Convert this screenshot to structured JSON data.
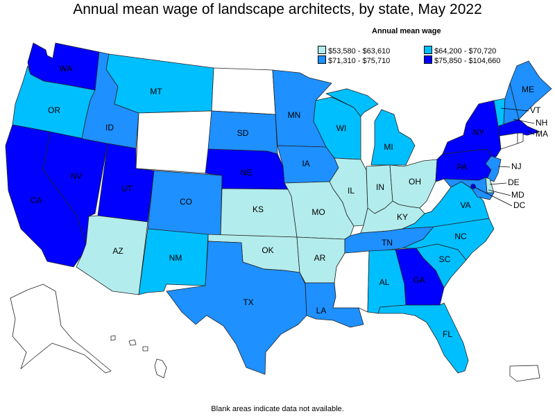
{
  "title": "Annual mean wage of landscape architects, by state, May 2022",
  "legend": {
    "title": "Annual mean wage",
    "items": [
      {
        "label": "$53,580 - $63,610",
        "color": "#b3ecec"
      },
      {
        "label": "$64,200 - $70,720",
        "color": "#00bfff"
      },
      {
        "label": "$71,310 - $75,710",
        "color": "#1e90ff"
      },
      {
        "label": "$75,850 - $104,660",
        "color": "#0000ff"
      }
    ]
  },
  "footnote": "Blank areas indicate data not available.",
  "colors": {
    "no_data": "#ffffff",
    "border": "#222222"
  },
  "states": {
    "WA": 4,
    "OR": 2,
    "CA": 4,
    "NV": 4,
    "ID": 3,
    "MT": 2,
    "WY": 0,
    "UT": 4,
    "AZ": 1,
    "CO": 3,
    "NM": 2,
    "ND": 0,
    "SD": 3,
    "NE": 4,
    "KS": 1,
    "OK": 1,
    "TX": 3,
    "MN": 3,
    "IA": 3,
    "MO": 1,
    "AR": 1,
    "LA": 3,
    "WI": 2,
    "IL": 1,
    "MI": 2,
    "IN": 1,
    "OH": 1,
    "KY": 1,
    "TN": 3,
    "MS": 0,
    "AL": 2,
    "GA": 4,
    "FL": 2,
    "SC": 2,
    "NC": 2,
    "VA": 2,
    "WV": 0,
    "PA": 4,
    "NY": 4,
    "VT": 2,
    "NH": 3,
    "ME": 3,
    "MA": 4,
    "RI": 0,
    "CT": 0,
    "NJ": 3,
    "DE": 1,
    "MD": 3,
    "DC": 4,
    "AK": 0,
    "HI": 0,
    "PR": 0
  },
  "labels": {
    "WA": "WA",
    "OR": "OR",
    "CA": "CA",
    "NV": "NV",
    "ID": "ID",
    "MT": "MT",
    "UT": "UT",
    "AZ": "AZ",
    "CO": "CO",
    "NM": "NM",
    "SD": "SD",
    "NE": "NE",
    "KS": "KS",
    "OK": "OK",
    "TX": "TX",
    "MN": "MN",
    "IA": "IA",
    "MO": "MO",
    "AR": "AR",
    "LA": "LA",
    "WI": "WI",
    "IL": "IL",
    "MI": "MI",
    "IN": "IN",
    "OH": "OH",
    "KY": "KY",
    "TN": "TN",
    "AL": "AL",
    "GA": "GA",
    "FL": "FL",
    "SC": "SC",
    "NC": "NC",
    "VA": "VA",
    "PA": "PA",
    "NY": "NY",
    "ME": "ME",
    "VT": "VT",
    "NH": "NH",
    "MA": "MA",
    "NJ": "NJ",
    "DE": "DE",
    "MD": "MD",
    "DC": "DC"
  }
}
